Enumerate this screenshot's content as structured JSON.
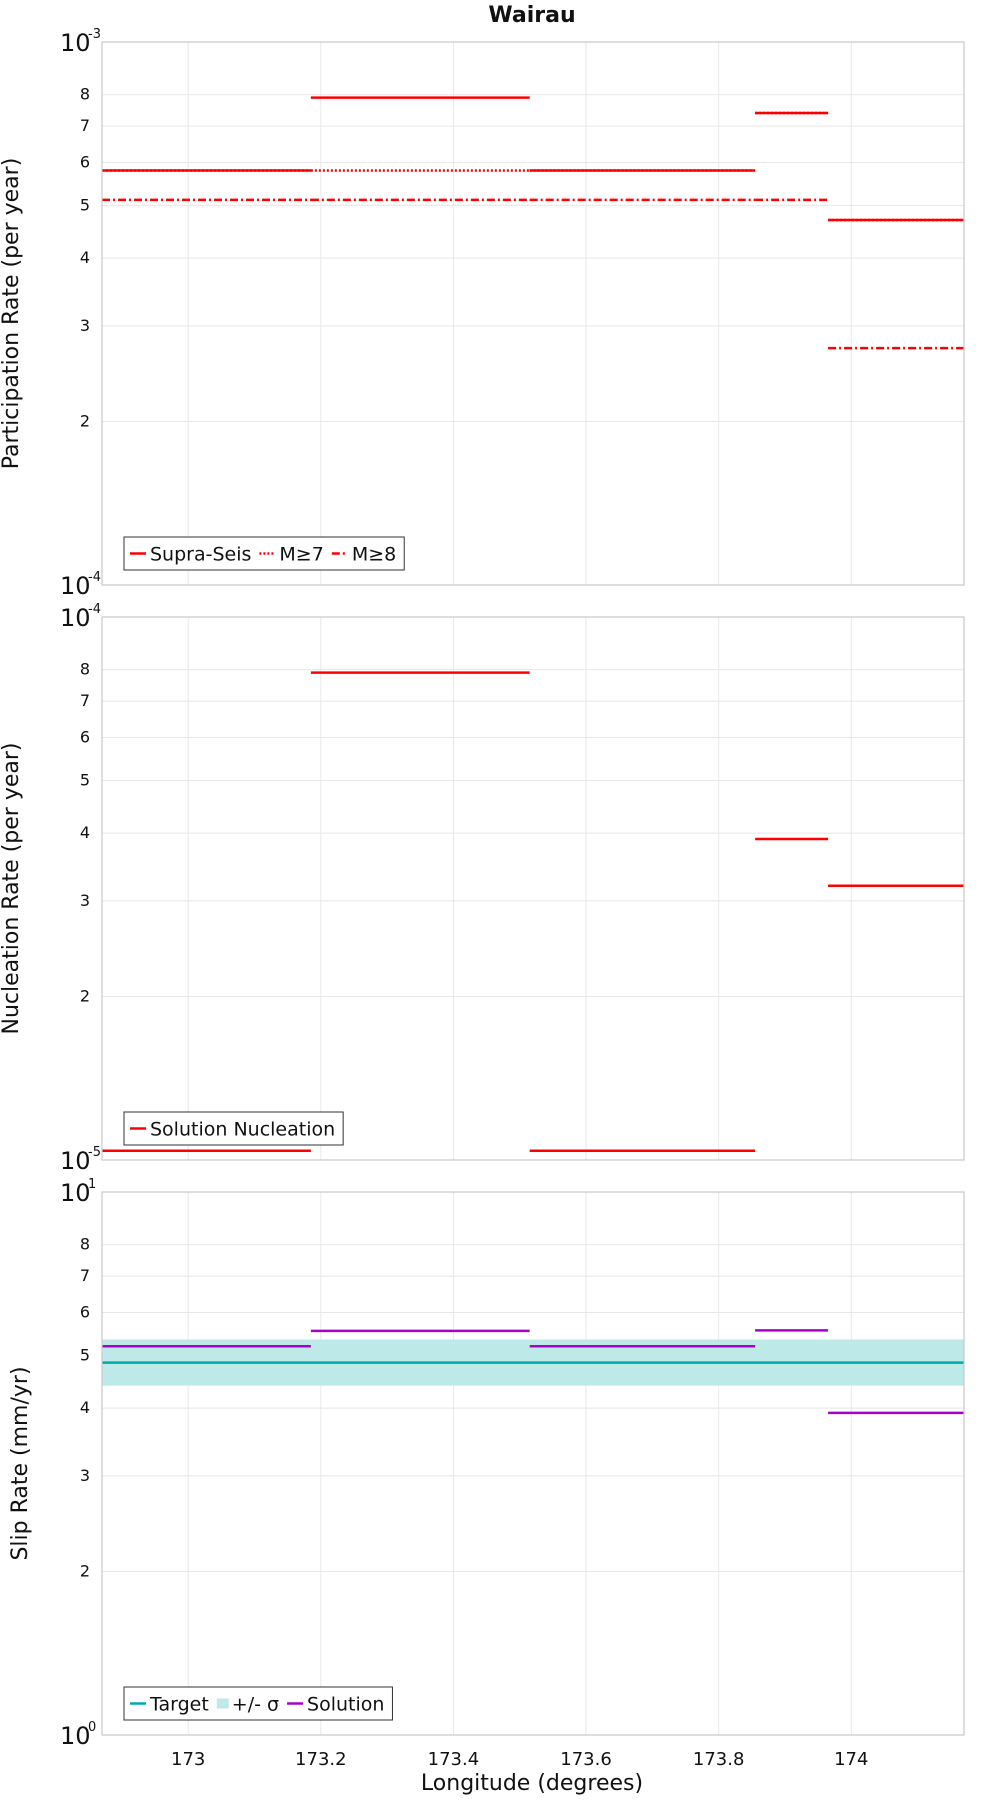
{
  "chart_data": {
    "title": "Wairau",
    "xlabel": "Longitude (degrees)",
    "xlim": [
      172.87,
      174.17
    ],
    "xticks": [
      "173",
      "173.2",
      "173.4",
      "173.6",
      "173.8",
      "174"
    ],
    "grid": true,
    "panels": [
      {
        "type": "line",
        "ylabel": "Participation Rate (per year)",
        "yscale": "log",
        "ylim": [
          0.0001,
          0.001
        ],
        "y_major_ticks": [
          {
            "base": "10",
            "exp": "-4"
          },
          {
            "base": "10",
            "exp": "-3"
          }
        ],
        "y_minor_ticks": [
          "2",
          "3",
          "4",
          "5",
          "6",
          "7",
          "8"
        ],
        "legend_position": "bottom-left",
        "legend": [
          "Supra-Seis",
          "M≥7",
          "M≥8"
        ],
        "series": [
          {
            "name": "Supra-Seis",
            "color": "#ff0000",
            "dash": "solid",
            "segments": [
              {
                "x0": 172.87,
                "x1": 173.185,
                "y": 0.00058
              },
              {
                "x0": 173.185,
                "x1": 173.515,
                "y": 0.00079
              },
              {
                "x0": 173.515,
                "x1": 173.855,
                "y": 0.00058
              },
              {
                "x0": 173.855,
                "x1": 173.965,
                "y": 0.00074
              },
              {
                "x0": 173.965,
                "x1": 174.17,
                "y": 0.00047
              }
            ]
          },
          {
            "name": "M≥7",
            "color": "#ff0000",
            "dash": "dotted",
            "segments": [
              {
                "x0": 172.87,
                "x1": 173.185,
                "y": 0.00058
              },
              {
                "x0": 173.185,
                "x1": 173.515,
                "y": 0.00058
              },
              {
                "x0": 173.515,
                "x1": 173.855,
                "y": 0.00058
              },
              {
                "x0": 173.855,
                "x1": 173.965,
                "y": 0.00074
              },
              {
                "x0": 173.965,
                "x1": 174.17,
                "y": 0.00047
              }
            ]
          },
          {
            "name": "M≥8",
            "color": "#ff0000",
            "dash": "dashdot",
            "segments": [
              {
                "x0": 172.87,
                "x1": 173.185,
                "y": 0.000512
              },
              {
                "x0": 173.185,
                "x1": 173.515,
                "y": 0.000512
              },
              {
                "x0": 173.515,
                "x1": 173.855,
                "y": 0.000512
              },
              {
                "x0": 173.855,
                "x1": 173.965,
                "y": 0.000512
              },
              {
                "x0": 173.965,
                "x1": 174.17,
                "y": 0.000273
              }
            ]
          }
        ]
      },
      {
        "type": "line",
        "ylabel": "Nucleation Rate (per year)",
        "yscale": "log",
        "ylim": [
          1e-05,
          0.0001
        ],
        "y_major_ticks": [
          {
            "base": "10",
            "exp": "-5"
          },
          {
            "base": "10",
            "exp": "-4"
          }
        ],
        "y_minor_ticks": [
          "2",
          "3",
          "4",
          "5",
          "6",
          "7",
          "8"
        ],
        "legend_position": "bottom-left",
        "legend": [
          "Solution Nucleation"
        ],
        "series": [
          {
            "name": "Solution Nucleation",
            "color": "#ff0000",
            "dash": "solid",
            "segments": [
              {
                "x0": 172.87,
                "x1": 173.185,
                "y": 1.04e-05
              },
              {
                "x0": 173.185,
                "x1": 173.515,
                "y": 7.9e-05
              },
              {
                "x0": 173.515,
                "x1": 173.855,
                "y": 1.04e-05
              },
              {
                "x0": 173.855,
                "x1": 173.965,
                "y": 3.9e-05
              },
              {
                "x0": 173.965,
                "x1": 174.17,
                "y": 3.2e-05
              }
            ]
          }
        ]
      },
      {
        "type": "line",
        "ylabel": "Slip Rate (mm/yr)",
        "yscale": "log",
        "ylim": [
          1,
          10
        ],
        "y_major_ticks": [
          {
            "base": "10",
            "exp": "0"
          },
          {
            "base": "10",
            "exp": "1"
          }
        ],
        "y_minor_ticks": [
          "2",
          "3",
          "4",
          "5",
          "6",
          "7",
          "8"
        ],
        "legend_position": "bottom-left",
        "legend": [
          "Target",
          "+/- σ",
          "Solution"
        ],
        "target": {
          "name": "Target",
          "color": "#00aaaa",
          "y": 4.85
        },
        "band": {
          "name": "+/- σ",
          "color": "#bdeae8",
          "y_low": 4.4,
          "y_high": 5.35
        },
        "series": [
          {
            "name": "Solution",
            "color": "#aa00cc",
            "dash": "solid",
            "segments": [
              {
                "x0": 172.87,
                "x1": 173.185,
                "y": 5.2
              },
              {
                "x0": 173.185,
                "x1": 173.515,
                "y": 5.55
              },
              {
                "x0": 173.515,
                "x1": 173.855,
                "y": 5.2
              },
              {
                "x0": 173.855,
                "x1": 173.965,
                "y": 5.56
              },
              {
                "x0": 173.965,
                "x1": 174.17,
                "y": 3.92
              }
            ]
          }
        ]
      }
    ]
  }
}
